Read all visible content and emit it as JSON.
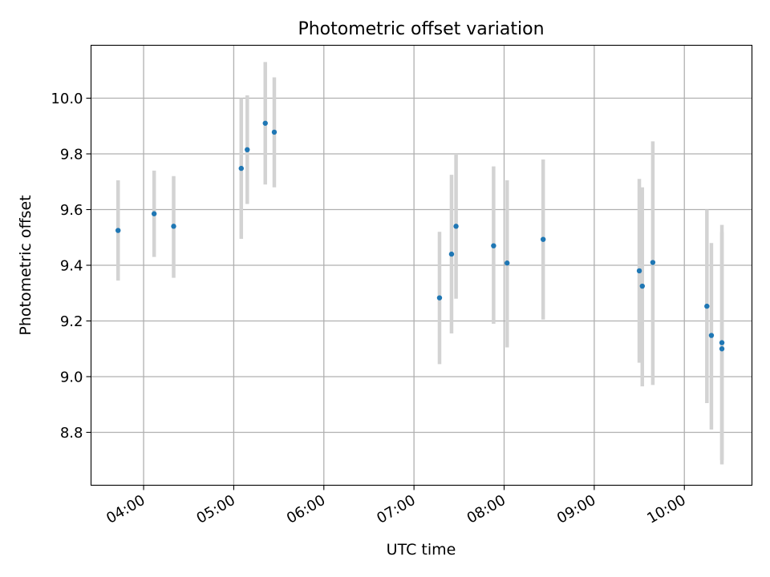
{
  "chart_data": {
    "type": "scatter",
    "title": "Photometric offset variation",
    "xlabel": "UTC time",
    "ylabel": "Photometric offset",
    "x_unit": "UTC hh:mm",
    "xlim": [
      "03:25",
      "10:45"
    ],
    "ylim": [
      8.61,
      10.19
    ],
    "x_ticks": [
      "04:00",
      "05:00",
      "06:00",
      "07:00",
      "08:00",
      "09:00",
      "10:00"
    ],
    "y_ticks": [
      "8.8",
      "9.0",
      "9.2",
      "9.4",
      "9.6",
      "9.8",
      "10.0"
    ],
    "grid": true,
    "legend": "none",
    "colors": {
      "marker": "#1f77b4",
      "errorbar": "#d3d3d3",
      "grid": "#b0b0b0"
    },
    "points": [
      {
        "x": "03:43",
        "y": 9.525,
        "ylow": 9.345,
        "yhigh": 9.705
      },
      {
        "x": "04:07",
        "y": 9.585,
        "ylow": 9.43,
        "yhigh": 9.74
      },
      {
        "x": "04:20",
        "y": 9.54,
        "ylow": 9.355,
        "yhigh": 9.72
      },
      {
        "x": "05:05",
        "y": 9.748,
        "ylow": 9.495,
        "yhigh": 10.0
      },
      {
        "x": "05:09",
        "y": 9.815,
        "ylow": 9.62,
        "yhigh": 10.01
      },
      {
        "x": "05:21",
        "y": 9.91,
        "ylow": 9.69,
        "yhigh": 10.13
      },
      {
        "x": "05:27",
        "y": 9.878,
        "ylow": 9.68,
        "yhigh": 10.075
      },
      {
        "x": "07:17",
        "y": 9.283,
        "ylow": 9.045,
        "yhigh": 9.52
      },
      {
        "x": "07:25",
        "y": 9.44,
        "ylow": 9.155,
        "yhigh": 9.725
      },
      {
        "x": "07:28",
        "y": 9.54,
        "ylow": 9.28,
        "yhigh": 9.8
      },
      {
        "x": "07:53",
        "y": 9.47,
        "ylow": 9.19,
        "yhigh": 9.755
      },
      {
        "x": "08:02",
        "y": 9.408,
        "ylow": 9.105,
        "yhigh": 9.705
      },
      {
        "x": "08:26",
        "y": 9.493,
        "ylow": 9.205,
        "yhigh": 9.78
      },
      {
        "x": "09:30",
        "y": 9.38,
        "ylow": 9.05,
        "yhigh": 9.71
      },
      {
        "x": "09:32",
        "y": 9.325,
        "ylow": 8.965,
        "yhigh": 9.68
      },
      {
        "x": "09:39",
        "y": 9.41,
        "ylow": 8.97,
        "yhigh": 9.845
      },
      {
        "x": "10:15",
        "y": 9.253,
        "ylow": 8.905,
        "yhigh": 9.6
      },
      {
        "x": "10:18",
        "y": 9.148,
        "ylow": 8.81,
        "yhigh": 9.48
      },
      {
        "x": "10:25",
        "y": 9.122,
        "ylow": 8.7,
        "yhigh": 9.545
      },
      {
        "x": "10:25",
        "y": 9.1,
        "ylow": 8.685,
        "yhigh": 9.52
      }
    ]
  }
}
